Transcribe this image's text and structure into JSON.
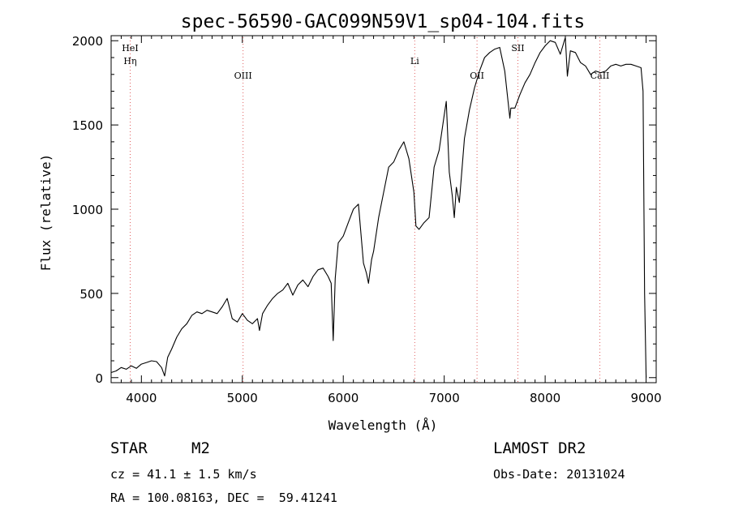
{
  "chart_data": {
    "type": "line",
    "title": "spec-56590-GAC099N59V1_sp04-104.fits",
    "xlabel": "Wavelength (Å)",
    "ylabel": "Flux (relative)",
    "xlim": [
      3700,
      9100
    ],
    "ylim": [
      -30,
      2030
    ],
    "xticks": [
      4000,
      5000,
      6000,
      7000,
      8000,
      9000
    ],
    "yticks": [
      0,
      500,
      1000,
      1500,
      2000
    ],
    "grid": false,
    "lines": [
      {
        "label": "Hη",
        "wavelength": 3889,
        "color": "#e06060",
        "row": 2
      },
      {
        "label": "HeI",
        "wavelength": 3889,
        "color": "#e06060",
        "row": 1
      },
      {
        "label": "OIII",
        "wavelength": 5007,
        "color": "#e06060",
        "row": 3
      },
      {
        "label": "Li",
        "wavelength": 6708,
        "color": "#e06060",
        "row": 2
      },
      {
        "label": "OII",
        "wavelength": 7325,
        "color": "#e06060",
        "row": 3
      },
      {
        "label": "SII",
        "wavelength": 7730,
        "color": "#e06060",
        "row": 1
      },
      {
        "label": "CaII",
        "wavelength": 8542,
        "color": "#e06060",
        "row": 3
      }
    ],
    "series": [
      {
        "x": [
          3700,
          3750,
          3800,
          3850,
          3900,
          3950,
          4000,
          4050,
          4100,
          4150,
          4200,
          4230,
          4260,
          4300,
          4350,
          4400,
          4450,
          4500,
          4550,
          4600,
          4650,
          4700,
          4750,
          4800,
          4850,
          4900,
          4950,
          5000,
          5050,
          5100,
          5150,
          5170,
          5200,
          5250,
          5300,
          5350,
          5400,
          5450,
          5500,
          5550,
          5600,
          5650,
          5700,
          5750,
          5800,
          5850,
          5880,
          5900,
          5920,
          5950,
          6000,
          6050,
          6100,
          6150,
          6200,
          6230,
          6250,
          6280,
          6300,
          6350,
          6400,
          6450,
          6500,
          6550,
          6600,
          6650,
          6700,
          6720,
          6750,
          6800,
          6850,
          6900,
          6950,
          7000,
          7020,
          7050,
          7080,
          7100,
          7120,
          7150,
          7200,
          7250,
          7300,
          7350,
          7400,
          7450,
          7500,
          7550,
          7600,
          7650,
          7660,
          7700,
          7750,
          7800,
          7850,
          7900,
          7950,
          8000,
          8050,
          8100,
          8150,
          8200,
          8220,
          8250,
          8300,
          8350,
          8400,
          8450,
          8500,
          8550,
          8600,
          8650,
          8700,
          8750,
          8800,
          8850,
          8900,
          8950,
          8970,
          8985,
          9000
        ],
        "y": [
          30,
          40,
          60,
          50,
          70,
          55,
          80,
          90,
          100,
          95,
          60,
          10,
          120,
          170,
          240,
          290,
          320,
          370,
          390,
          380,
          400,
          390,
          380,
          420,
          470,
          350,
          330,
          380,
          340,
          320,
          350,
          280,
          380,
          430,
          470,
          500,
          520,
          560,
          490,
          550,
          580,
          540,
          600,
          640,
          650,
          600,
          560,
          220,
          590,
          800,
          840,
          920,
          1000,
          1030,
          680,
          620,
          560,
          700,
          750,
          950,
          1100,
          1250,
          1280,
          1350,
          1400,
          1300,
          1100,
          900,
          880,
          920,
          950,
          1250,
          1350,
          1560,
          1640,
          1220,
          1080,
          950,
          1130,
          1040,
          1420,
          1590,
          1720,
          1820,
          1900,
          1930,
          1950,
          1960,
          1820,
          1540,
          1600,
          1600,
          1680,
          1750,
          1800,
          1870,
          1930,
          1970,
          2000,
          1990,
          1920,
          2020,
          1790,
          1940,
          1930,
          1870,
          1850,
          1800,
          1820,
          1810,
          1820,
          1850,
          1860,
          1850,
          1860,
          1860,
          1850,
          1840,
          1700,
          500,
          0
        ]
      }
    ]
  },
  "info": {
    "object_class": "STAR",
    "subclass": "M2",
    "release": "LAMOST DR2",
    "cz": "cz = 41.1 ± 1.5 km/s",
    "obs_date": "Obs-Date: 20131024",
    "coords": "RA = 100.08163, DEC =  59.41241"
  }
}
